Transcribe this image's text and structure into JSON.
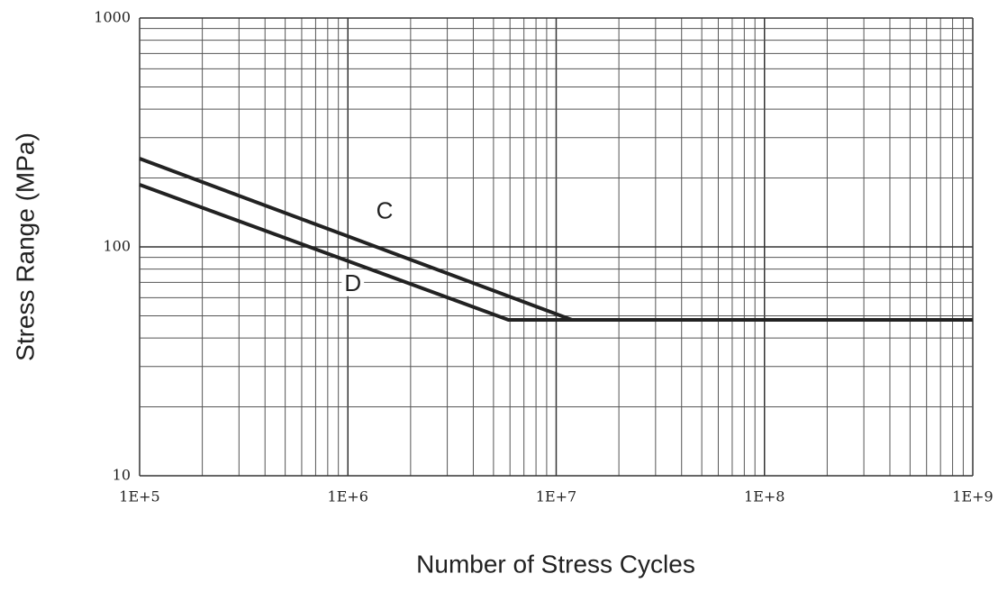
{
  "chart_data": {
    "type": "line",
    "xlabel": "Number of Stress Cycles",
    "ylabel": "Stress Range (MPa)",
    "log_x": true,
    "log_y": true,
    "grid": true,
    "xlim": [
      100000,
      1000000000
    ],
    "ylim": [
      10,
      1000
    ],
    "xticks": [
      {
        "value": 100000,
        "label": "1E+5"
      },
      {
        "value": 1000000,
        "label": "1E+6"
      },
      {
        "value": 10000000,
        "label": "1E+7"
      },
      {
        "value": 100000000,
        "label": "1E+8"
      },
      {
        "value": 1000000000,
        "label": "1E+9"
      }
    ],
    "yticks": [
      10,
      100,
      1000
    ],
    "series": [
      {
        "name": "C",
        "color": "#222222",
        "x": [
          100000,
          11900000,
          1000000000
        ],
        "values": [
          243,
          48,
          48
        ]
      },
      {
        "name": "D",
        "color": "#222222",
        "x": [
          100000,
          5900000,
          1000000000
        ],
        "values": [
          187,
          48,
          48
        ]
      }
    ]
  }
}
